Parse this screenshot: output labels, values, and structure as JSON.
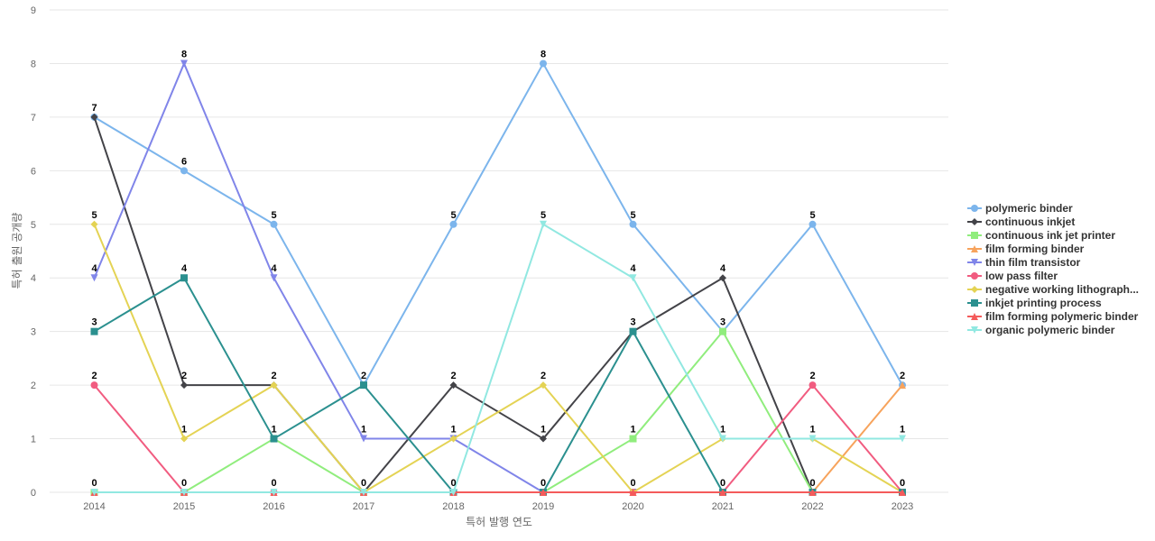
{
  "chart_data": {
    "type": "line",
    "xlabel": "특허 발행 연도",
    "ylabel": "특허 출원 공개량",
    "x": [
      "2014",
      "2015",
      "2016",
      "2017",
      "2018",
      "2019",
      "2020",
      "2021",
      "2022",
      "2023"
    ],
    "ylim": [
      0,
      9
    ],
    "yticks": [
      0,
      1,
      2,
      3,
      4,
      5,
      6,
      7,
      8,
      9
    ],
    "grid": true,
    "legend_position": "right",
    "data_labels": true,
    "series": [
      {
        "name": "polymeric binder",
        "color": "#7cb5ec",
        "marker": "circle",
        "values": [
          7,
          6,
          5,
          2,
          5,
          8,
          5,
          3,
          5,
          2
        ]
      },
      {
        "name": "continuous inkjet",
        "color": "#434348",
        "marker": "diamond",
        "values": [
          7,
          2,
          2,
          0,
          2,
          1,
          3,
          4,
          0,
          0
        ]
      },
      {
        "name": "continuous ink jet printer",
        "color": "#90ed7d",
        "marker": "square",
        "values": [
          0,
          0,
          1,
          0,
          0,
          0,
          1,
          3,
          0,
          0
        ]
      },
      {
        "name": "film forming binder",
        "color": "#f7a35c",
        "marker": "triangle",
        "values": [
          0,
          0,
          0,
          0,
          0,
          0,
          0,
          0,
          0,
          2
        ]
      },
      {
        "name": "thin film transistor",
        "color": "#8085e9",
        "marker": "triangle-down",
        "values": [
          4,
          8,
          4,
          1,
          1,
          0,
          0,
          0,
          0,
          0
        ]
      },
      {
        "name": "low pass filter",
        "color": "#f15c80",
        "marker": "circle",
        "values": [
          2,
          0,
          0,
          0,
          0,
          0,
          0,
          0,
          2,
          0
        ]
      },
      {
        "name": "negative working lithograph...",
        "color": "#e4d354",
        "marker": "diamond",
        "values": [
          5,
          1,
          2,
          0,
          1,
          2,
          0,
          1,
          1,
          0
        ]
      },
      {
        "name": "inkjet printing process",
        "color": "#2b908f",
        "marker": "square",
        "values": [
          3,
          4,
          1,
          2,
          0,
          0,
          3,
          0,
          0,
          0
        ]
      },
      {
        "name": "film forming polymeric binder",
        "color": "#f45b5b",
        "marker": "triangle",
        "values": [
          0,
          0,
          0,
          0,
          0,
          0,
          0,
          0,
          0,
          0
        ]
      },
      {
        "name": "organic polymeric binder",
        "color": "#91e8e1",
        "marker": "triangle-down",
        "values": [
          0,
          0,
          0,
          0,
          0,
          5,
          4,
          1,
          1,
          1
        ]
      }
    ],
    "point_labels": [
      {
        "x": "2014",
        "y": 7,
        "text": "7"
      },
      {
        "x": "2014",
        "y": 5,
        "text": "5"
      },
      {
        "x": "2014",
        "y": 4,
        "text": "4"
      },
      {
        "x": "2014",
        "y": 3,
        "text": "3"
      },
      {
        "x": "2014",
        "y": 2,
        "text": "2"
      },
      {
        "x": "2014",
        "y": 0,
        "text": "0"
      },
      {
        "x": "2015",
        "y": 8,
        "text": "8"
      },
      {
        "x": "2015",
        "y": 6,
        "text": "6"
      },
      {
        "x": "2015",
        "y": 4,
        "text": "4"
      },
      {
        "x": "2015",
        "y": 2,
        "text": "2"
      },
      {
        "x": "2015",
        "y": 1,
        "text": "1"
      },
      {
        "x": "2015",
        "y": 0,
        "text": "0"
      },
      {
        "x": "2016",
        "y": 5,
        "text": "5"
      },
      {
        "x": "2016",
        "y": 4,
        "text": "4"
      },
      {
        "x": "2016",
        "y": 2,
        "text": "2"
      },
      {
        "x": "2016",
        "y": 1,
        "text": "1"
      },
      {
        "x": "2016",
        "y": 0,
        "text": "0"
      },
      {
        "x": "2017",
        "y": 2,
        "text": "2"
      },
      {
        "x": "2017",
        "y": 1,
        "text": "1"
      },
      {
        "x": "2017",
        "y": 0,
        "text": "0"
      },
      {
        "x": "2018",
        "y": 5,
        "text": "5"
      },
      {
        "x": "2018",
        "y": 2,
        "text": "2"
      },
      {
        "x": "2018",
        "y": 1,
        "text": "1"
      },
      {
        "x": "2018",
        "y": 0,
        "text": "0"
      },
      {
        "x": "2019",
        "y": 8,
        "text": "8"
      },
      {
        "x": "2019",
        "y": 5,
        "text": "5"
      },
      {
        "x": "2019",
        "y": 2,
        "text": "2"
      },
      {
        "x": "2019",
        "y": 1,
        "text": "1"
      },
      {
        "x": "2019",
        "y": 0,
        "text": "0"
      },
      {
        "x": "2020",
        "y": 5,
        "text": "5"
      },
      {
        "x": "2020",
        "y": 4,
        "text": "4"
      },
      {
        "x": "2020",
        "y": 3,
        "text": "3"
      },
      {
        "x": "2020",
        "y": 1,
        "text": "1"
      },
      {
        "x": "2020",
        "y": 0,
        "text": "0"
      },
      {
        "x": "2021",
        "y": 4,
        "text": "4"
      },
      {
        "x": "2021",
        "y": 3,
        "text": "3"
      },
      {
        "x": "2021",
        "y": 1,
        "text": "1"
      },
      {
        "x": "2021",
        "y": 0,
        "text": "0"
      },
      {
        "x": "2022",
        "y": 5,
        "text": "5"
      },
      {
        "x": "2022",
        "y": 2,
        "text": "2"
      },
      {
        "x": "2022",
        "y": 1,
        "text": "1"
      },
      {
        "x": "2022",
        "y": 0,
        "text": "0"
      },
      {
        "x": "2023",
        "y": 2,
        "text": "2"
      },
      {
        "x": "2023",
        "y": 1,
        "text": "1"
      },
      {
        "x": "2023",
        "y": 0,
        "text": "0"
      }
    ]
  }
}
